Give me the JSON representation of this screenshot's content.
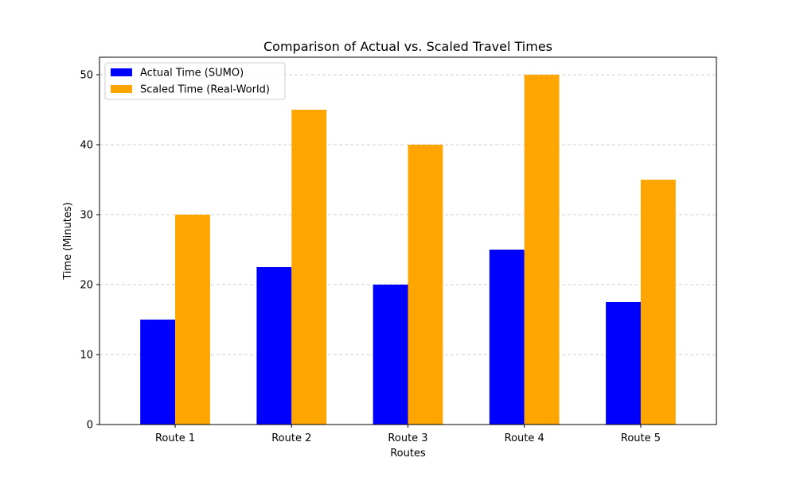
{
  "chart_data": {
    "type": "bar",
    "title": "Comparison of Actual vs. Scaled Travel Times",
    "xlabel": "Routes",
    "ylabel": "Time (Minutes)",
    "categories": [
      "Route 1",
      "Route 2",
      "Route 3",
      "Route 4",
      "Route 5"
    ],
    "series": [
      {
        "name": "Actual Time (SUMO)",
        "values": [
          15,
          22.5,
          20,
          25,
          17.5
        ],
        "color": "#0000ff"
      },
      {
        "name": "Scaled Time (Real-World)",
        "values": [
          30,
          45,
          40,
          50,
          35
        ],
        "color": "#ffa500"
      }
    ],
    "ylim": [
      0,
      52.5
    ],
    "yticks": [
      0,
      10,
      20,
      30,
      40,
      50
    ],
    "grid": "y-dashed",
    "legend_position": "top-left"
  }
}
